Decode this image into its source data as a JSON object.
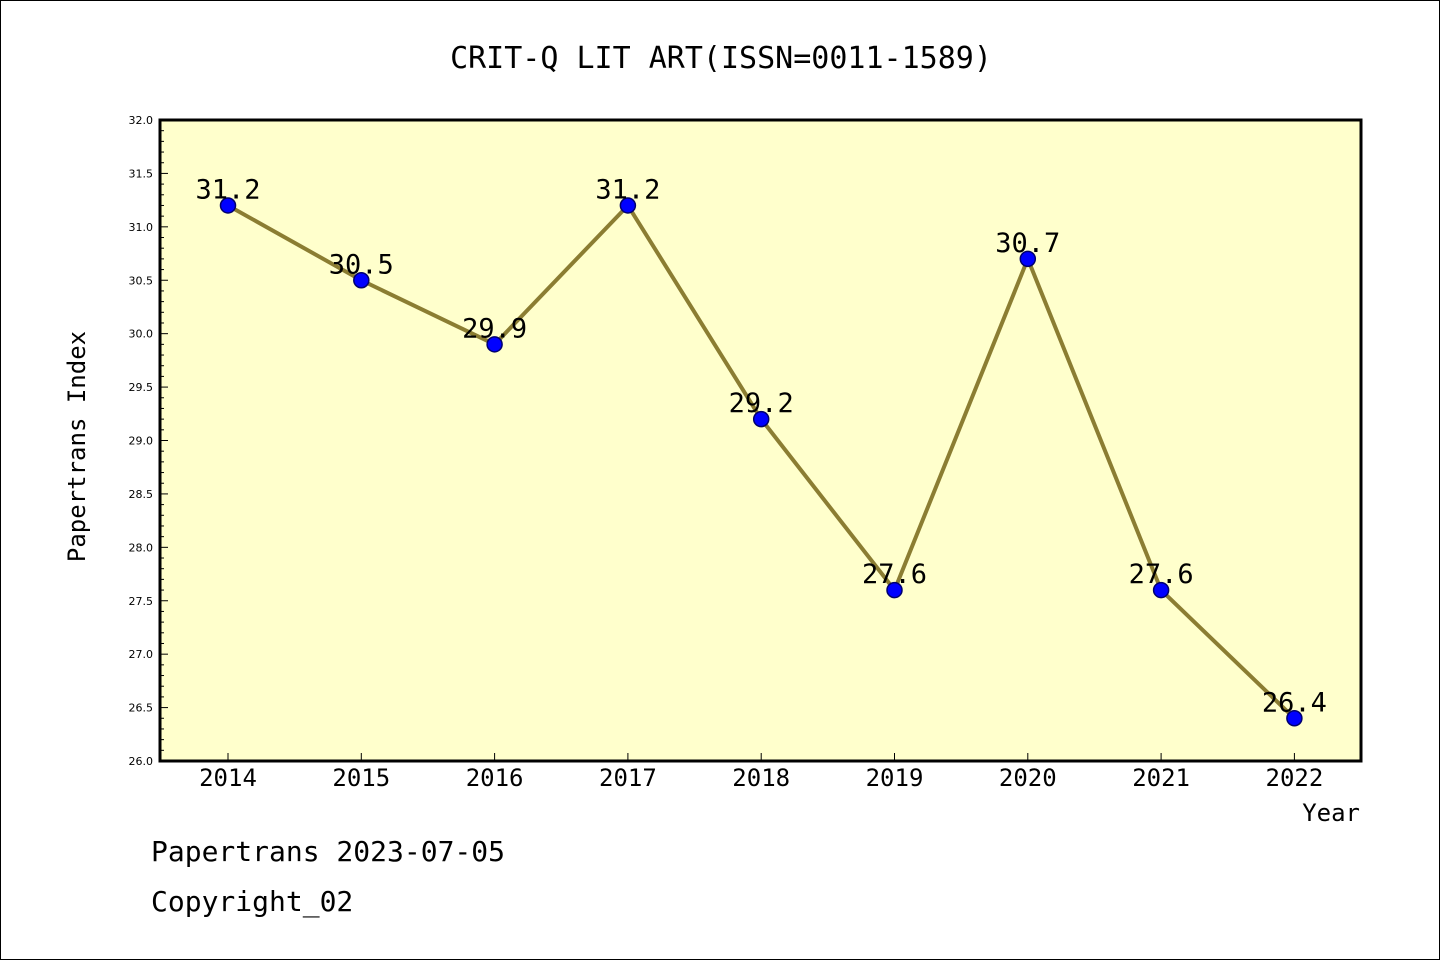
{
  "chart_data": {
    "type": "line",
    "title": "CRIT-Q LIT ART(ISSN=0011-1589)",
    "xlabel": "Year",
    "ylabel": "Papertrans Index",
    "categories": [
      "2014",
      "2015",
      "2016",
      "2017",
      "2018",
      "2019",
      "2020",
      "2021",
      "2022"
    ],
    "series": [
      {
        "values": [
          31.2,
          30.5,
          29.9,
          31.2,
          29.2,
          27.6,
          30.7,
          27.6,
          26.4
        ],
        "data_labels": [
          "31.2",
          "30.5",
          "29.9",
          "31.2",
          "29.2",
          "27.6",
          "30.7",
          "27.6",
          "26.4"
        ]
      }
    ],
    "ylim": [
      26.0,
      32.0
    ],
    "yticks": [
      "26.0",
      "26.5",
      "27.0",
      "27.5",
      "28.0",
      "28.5",
      "29.0",
      "29.5",
      "30.0",
      "30.5",
      "31.0",
      "31.5",
      "32.0"
    ],
    "grid": false,
    "colors": {
      "plot_background": "#ffffcc",
      "line": "#8b7d32",
      "marker": "#0000ff",
      "marker_edge": "#00006e"
    }
  },
  "footer": {
    "line1": "Papertrans 2023-07-05",
    "line2": "Copyright_02"
  }
}
